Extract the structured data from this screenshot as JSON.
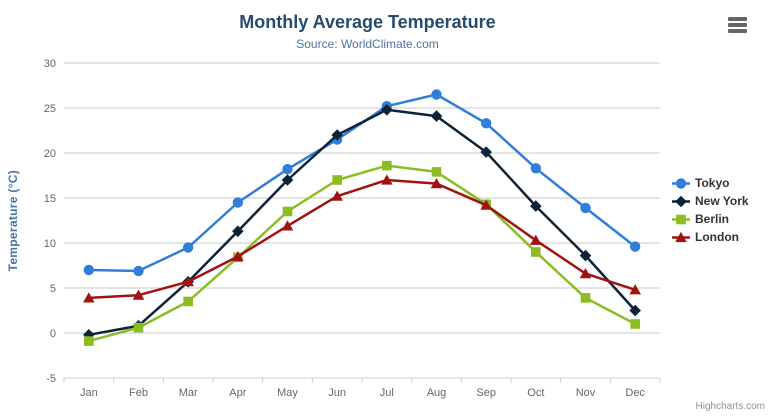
{
  "credit": "Highcharts.com",
  "menu": {
    "icon": "hamburger-icon"
  },
  "chart_data": {
    "type": "line",
    "title": "Monthly Average Temperature",
    "subtitle": "Source: WorldClimate.com",
    "xlabel": "",
    "ylabel": "Temperature (°C)",
    "categories": [
      "Jan",
      "Feb",
      "Mar",
      "Apr",
      "May",
      "Jun",
      "Jul",
      "Aug",
      "Sep",
      "Oct",
      "Nov",
      "Dec"
    ],
    "series": [
      {
        "name": "Tokyo",
        "color": "#2f7ed8",
        "marker": "circle",
        "values": [
          7.0,
          6.9,
          9.5,
          14.5,
          18.2,
          21.5,
          25.2,
          26.5,
          23.3,
          18.3,
          13.9,
          9.6
        ]
      },
      {
        "name": "New York",
        "color": "#0d233a",
        "marker": "diamond",
        "values": [
          -0.2,
          0.8,
          5.7,
          11.3,
          17.0,
          22.0,
          24.8,
          24.1,
          20.1,
          14.1,
          8.6,
          2.5
        ]
      },
      {
        "name": "Berlin",
        "color": "#8bbc21",
        "marker": "square",
        "values": [
          -0.9,
          0.6,
          3.5,
          8.4,
          13.5,
          17.0,
          18.6,
          17.9,
          14.3,
          9.0,
          3.9,
          1.0
        ]
      },
      {
        "name": "London",
        "color": "#a01313",
        "marker": "triangle",
        "values": [
          3.9,
          4.2,
          5.7,
          8.5,
          11.9,
          15.2,
          17.0,
          16.6,
          14.2,
          10.3,
          6.6,
          4.8
        ]
      }
    ],
    "ylim": [
      -5,
      30
    ],
    "ytick_step": 5,
    "grid": true,
    "legend_position": "right",
    "grid_color": "#c8c8c8",
    "axis_line_color": "#c0d0e0"
  }
}
